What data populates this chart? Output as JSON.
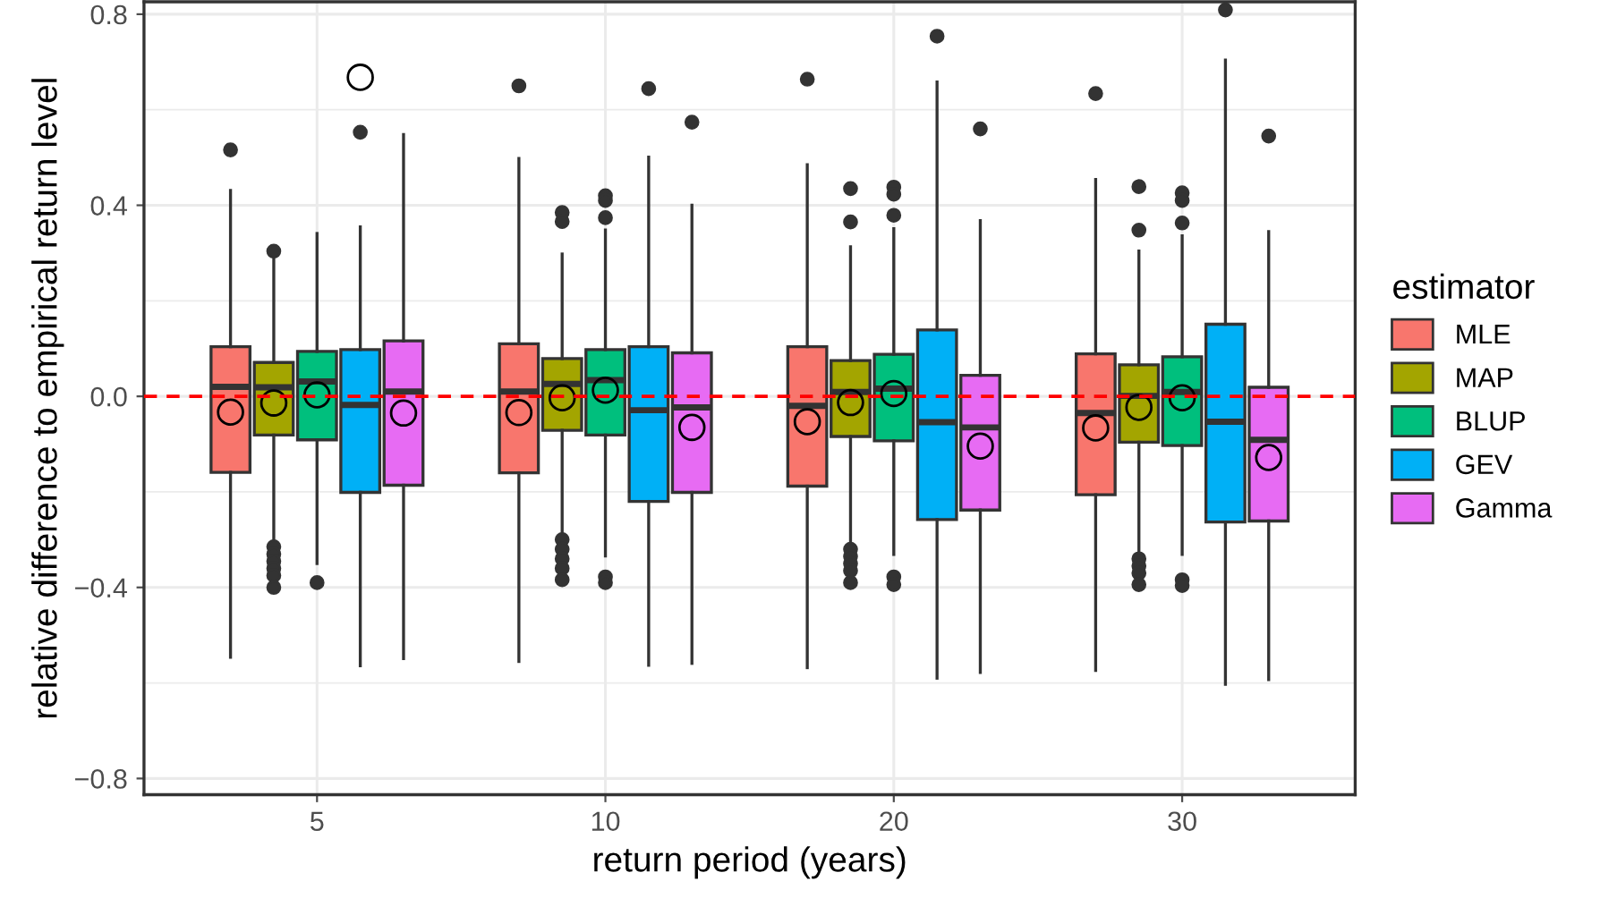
{
  "chart_data": {
    "type": "box",
    "xlabel": "return period (years)",
    "ylabel": "relative difference to empirical return level",
    "legend_title": "estimator",
    "categories": [
      "5",
      "10",
      "20",
      "30"
    ],
    "ylim": [
      -0.834,
      0.826
    ],
    "yticks": [
      {
        "value": -0.8,
        "label": "−0.8"
      },
      {
        "value": -0.4,
        "label": "−0.4"
      },
      {
        "value": 0.0,
        "label": "0.0"
      },
      {
        "value": 0.4,
        "label": "0.4"
      },
      {
        "value": 0.8,
        "label": "0.8"
      }
    ],
    "grid": true,
    "legend": "right",
    "marker": "circle",
    "ref_lines": [
      {
        "axis": "y",
        "value": 0,
        "color": "#ff0000",
        "line_style": "dashed"
      }
    ],
    "series": [
      {
        "name": "MLE",
        "color": "#f8766d",
        "boxes": [
          {
            "low": -0.546,
            "q1": -0.159,
            "median": 0.02,
            "q3": 0.104,
            "high": 0.431,
            "mean": -0.033,
            "outliers": [
              0.516
            ]
          },
          {
            "low": -0.555,
            "q1": -0.16,
            "median": 0.01,
            "q3": 0.11,
            "high": 0.498,
            "mean": -0.034,
            "outliers": [
              0.65
            ]
          },
          {
            "low": -0.568,
            "q1": -0.188,
            "median": -0.02,
            "q3": 0.104,
            "high": 0.485,
            "mean": -0.053,
            "outliers": [
              0.664
            ]
          },
          {
            "low": -0.574,
            "q1": -0.206,
            "median": -0.035,
            "q3": 0.089,
            "high": 0.454,
            "mean": -0.066,
            "outliers": [
              0.634
            ]
          }
        ]
      },
      {
        "name": "MAP",
        "color": "#a3a500",
        "boxes": [
          {
            "low": -0.3,
            "q1": -0.081,
            "median": 0.019,
            "q3": 0.071,
            "high": 0.288,
            "mean": -0.014,
            "outliers": [
              0.304,
              -0.315,
              -0.33,
              -0.345,
              -0.36,
              -0.375,
              -0.4
            ]
          },
          {
            "low": -0.29,
            "q1": -0.071,
            "median": 0.026,
            "q3": 0.079,
            "high": 0.298,
            "mean": -0.003,
            "outliers": [
              0.385,
              0.366,
              -0.3,
              -0.32,
              -0.34,
              -0.36,
              -0.384
            ]
          },
          {
            "low": -0.315,
            "q1": -0.084,
            "median": 0.009,
            "q3": 0.075,
            "high": 0.313,
            "mean": -0.013,
            "outliers": [
              0.435,
              0.365,
              -0.32,
              -0.335,
              -0.35,
              -0.365,
              -0.39
            ]
          },
          {
            "low": -0.331,
            "q1": -0.096,
            "median": 0.001,
            "q3": 0.066,
            "high": 0.304,
            "mean": -0.023,
            "outliers": [
              0.439,
              0.348,
              -0.34,
              -0.355,
              -0.37,
              -0.394
            ]
          }
        ]
      },
      {
        "name": "BLUP",
        "color": "#00bf7d",
        "boxes": [
          {
            "low": -0.35,
            "q1": -0.091,
            "median": 0.031,
            "q3": 0.094,
            "high": 0.341,
            "mean": 0.003,
            "outliers": [
              -0.39
            ]
          },
          {
            "low": -0.334,
            "q1": -0.081,
            "median": 0.034,
            "q3": 0.098,
            "high": 0.348,
            "mean": 0.013,
            "outliers": [
              0.42,
              0.41,
              0.374,
              -0.378,
              -0.39
            ]
          },
          {
            "low": -0.331,
            "q1": -0.093,
            "median": 0.016,
            "q3": 0.088,
            "high": 0.351,
            "mean": 0.006,
            "outliers": [
              0.438,
              0.423,
              0.379,
              -0.378,
              -0.394
            ]
          },
          {
            "low": -0.331,
            "q1": -0.103,
            "median": 0.009,
            "q3": 0.083,
            "high": 0.336,
            "mean": -0.003,
            "outliers": [
              0.426,
              0.41,
              0.363,
              -0.384,
              -0.396
            ]
          }
        ]
      },
      {
        "name": "GEV",
        "color": "#00b0f6",
        "boxes": [
          {
            "low": -0.564,
            "q1": -0.201,
            "median": -0.018,
            "q3": 0.098,
            "high": 0.355,
            "mean": 0.668,
            "outliers": [
              0.553
            ]
          },
          {
            "low": -0.563,
            "q1": -0.22,
            "median": -0.029,
            "q3": 0.104,
            "high": 0.501,
            "outliers": [
              0.644
            ]
          },
          {
            "low": -0.59,
            "q1": -0.258,
            "median": -0.054,
            "q3": 0.139,
            "high": 0.658,
            "outliers": [
              0.754
            ]
          },
          {
            "low": -0.603,
            "q1": -0.263,
            "median": -0.053,
            "q3": 0.151,
            "high": 0.704,
            "outliers": [
              0.809
            ]
          }
        ]
      },
      {
        "name": "Gamma",
        "color": "#e76bf3",
        "boxes": [
          {
            "low": -0.549,
            "q1": -0.186,
            "median": 0.01,
            "q3": 0.116,
            "high": 0.548,
            "mean": -0.035
          },
          {
            "low": -0.559,
            "q1": -0.201,
            "median": -0.023,
            "q3": 0.091,
            "high": 0.4,
            "mean": -0.065,
            "outliers": [
              0.574
            ]
          },
          {
            "low": -0.578,
            "q1": -0.238,
            "median": -0.065,
            "q3": 0.044,
            "high": 0.368,
            "mean": -0.104,
            "outliers": [
              0.56
            ]
          },
          {
            "low": -0.593,
            "q1": -0.261,
            "median": -0.091,
            "q3": 0.019,
            "high": 0.345,
            "mean": -0.128,
            "outliers": [
              0.545
            ]
          }
        ]
      }
    ]
  }
}
